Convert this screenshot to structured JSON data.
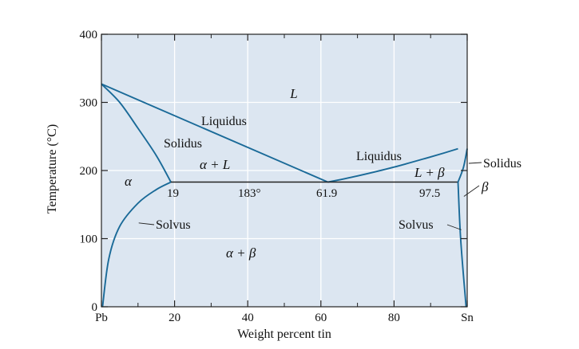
{
  "chart_data": {
    "type": "phase-diagram",
    "title": "",
    "xlabel": "Weight percent tin",
    "ylabel": "Temperature (°C)",
    "xlim": [
      0,
      100
    ],
    "ylim": [
      0,
      400
    ],
    "x_ticks": [
      {
        "value": 0,
        "label": "Pb"
      },
      {
        "value": 20,
        "label": "20"
      },
      {
        "value": 40,
        "label": "40"
      },
      {
        "value": 60,
        "label": "60"
      },
      {
        "value": 80,
        "label": "80"
      },
      {
        "value": 100,
        "label": "Sn"
      }
    ],
    "x_minor_ticks": [
      10,
      30,
      50,
      70,
      90
    ],
    "y_ticks": [
      {
        "value": 0,
        "label": "0"
      },
      {
        "value": 100,
        "label": "100"
      },
      {
        "value": 200,
        "label": "200"
      },
      {
        "value": 300,
        "label": "300"
      },
      {
        "value": 400,
        "label": "400"
      }
    ],
    "grid": true,
    "series": [
      {
        "name": "Liquidus (Pb side)",
        "points": [
          [
            0,
            327
          ],
          [
            61.9,
            183
          ]
        ]
      },
      {
        "name": "Liquidus (Sn side)",
        "points": [
          [
            61.9,
            183
          ],
          [
            70,
            192
          ],
          [
            80,
            205
          ],
          [
            90,
            220
          ],
          [
            97.5,
            232
          ]
        ]
      },
      {
        "name": "Solidus (Pb side)",
        "points": [
          [
            0,
            327
          ],
          [
            5,
            300
          ],
          [
            10,
            262
          ],
          [
            15,
            222
          ],
          [
            19,
            183
          ]
        ]
      },
      {
        "name": "Solvus (Pb side)",
        "points": [
          [
            0.3,
            0
          ],
          [
            2,
            70
          ],
          [
            5,
            118
          ],
          [
            10,
            152
          ],
          [
            15,
            172
          ],
          [
            19,
            183
          ]
        ]
      },
      {
        "name": "Eutectic isotherm",
        "points": [
          [
            19,
            183
          ],
          [
            97.5,
            183
          ]
        ]
      },
      {
        "name": "Solidus (Sn side)",
        "points": [
          [
            97.5,
            183
          ],
          [
            99,
            205
          ],
          [
            100,
            232
          ]
        ]
      },
      {
        "name": "Solvus (Sn side)",
        "points": [
          [
            97.5,
            183
          ],
          [
            98.2,
            100
          ],
          [
            99.7,
            0
          ]
        ]
      }
    ],
    "point_labels": [
      {
        "text": "19",
        "x": 19,
        "y": 183
      },
      {
        "text": "183°",
        "x": 40,
        "y": 183
      },
      {
        "text": "61.9",
        "x": 61.9,
        "y": 183
      },
      {
        "text": "97.5",
        "x": 97.5,
        "y": 183
      }
    ],
    "region_labels": {
      "liquid": "L",
      "liquidus_left": "Liquidus",
      "solidus_left": "Solidus",
      "alpha_plus_liquid": "α + L",
      "liquidus_right": "Liquidus",
      "liquid_plus_beta": "L + β",
      "solidus_right": "Solidus",
      "beta": "β",
      "alpha": "α",
      "solvus_left": "Solvus",
      "solvus_right": "Solvus",
      "alpha_plus_beta": "α + β"
    },
    "colors": {
      "plot_background": "#dce6f1",
      "curve": "#1a6a98",
      "isotherm": "#222222",
      "grid": "#ffffff"
    }
  }
}
